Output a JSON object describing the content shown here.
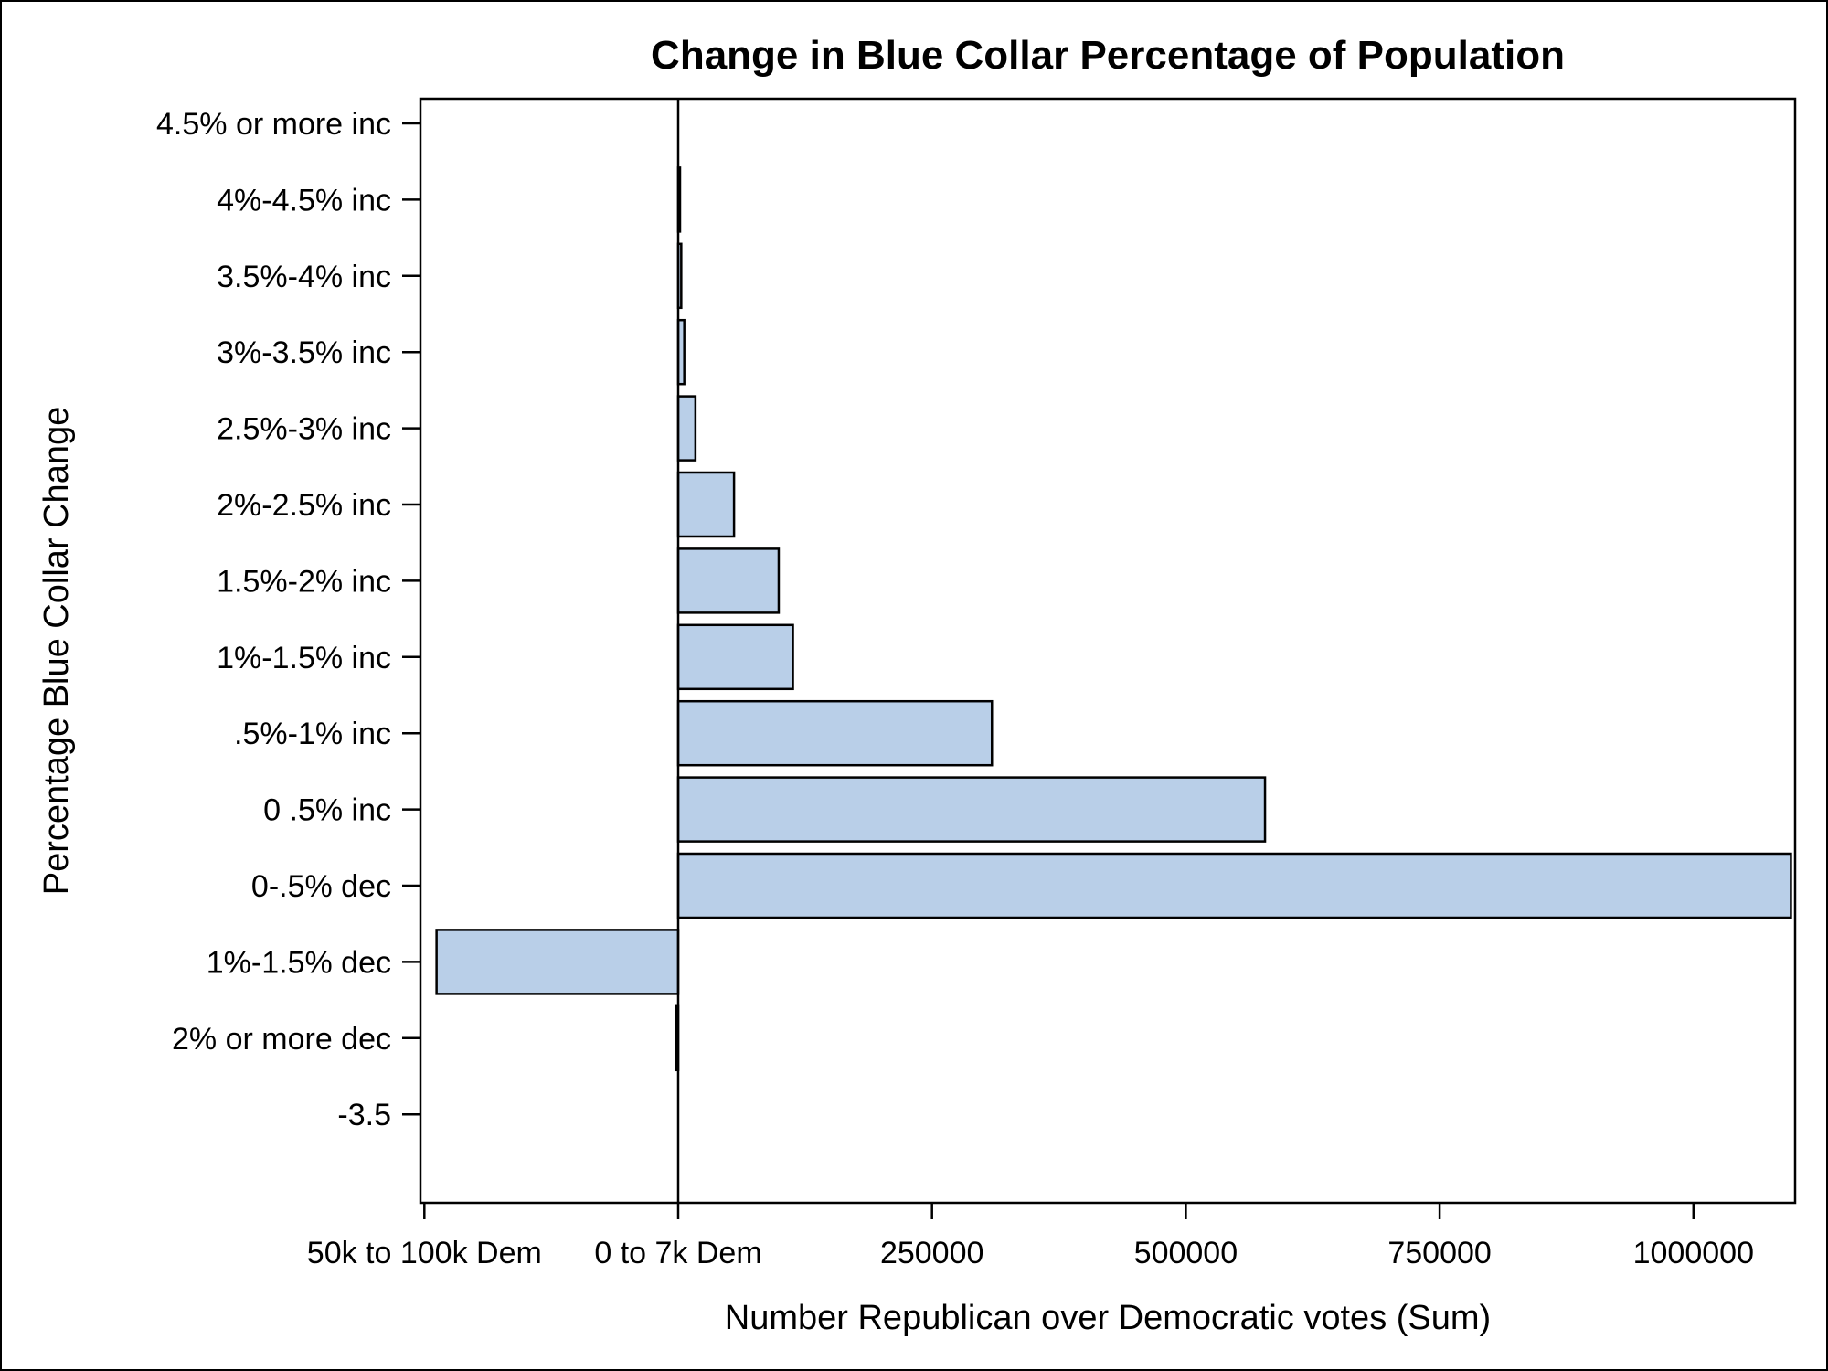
{
  "chart_data": {
    "type": "bar",
    "orientation": "horizontal",
    "title": "Change in Blue Collar Percentage of Population",
    "xlabel": "Number Republican over Democratic votes (Sum)",
    "ylabel": "Percentage Blue Collar Change",
    "categories": [
      "4.5% or more inc",
      "4%-4.5% inc",
      "3.5%-4% inc",
      "3%-3.5% inc",
      "2.5%-3% inc",
      "2%-2.5% inc",
      "1.5%-2% inc",
      "1%-1.5% inc",
      ".5%-1% inc",
      "0 .5% inc",
      "0-.5% dec",
      "1%-1.5% dec",
      "2% or more dec",
      "-3.5"
    ],
    "values": [
      0,
      1000,
      3000,
      6000,
      17000,
      55000,
      99000,
      113000,
      309000,
      578000,
      1096000,
      -238000,
      -2000,
      0
    ],
    "xlim": [
      -250000,
      1100000
    ],
    "x_ticks": [
      {
        "value": -250000,
        "label": "50k to 100k Dem"
      },
      {
        "value": 0,
        "label": "0 to 7k Dem"
      },
      {
        "value": 250000,
        "label": "250000"
      },
      {
        "value": 500000,
        "label": "500000"
      },
      {
        "value": 750000,
        "label": "750000"
      },
      {
        "value": 1000000,
        "label": "1000000"
      }
    ],
    "reference_line_x": 0,
    "grid": false,
    "bar_color": "#b9cfe8"
  }
}
